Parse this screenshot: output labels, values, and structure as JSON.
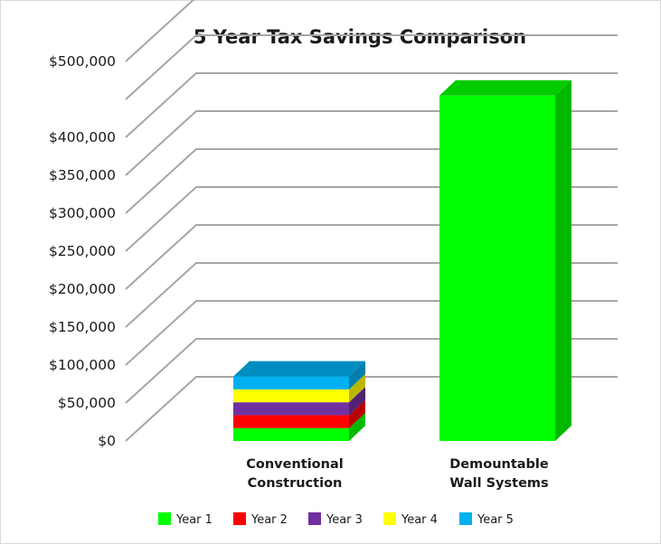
{
  "chart_data": {
    "type": "bar",
    "title": "5 Year Tax Savings Comparison",
    "xlabel": "",
    "ylabel": "",
    "ylim": [
      0,
      500000
    ],
    "y_ticks": [
      0,
      50000,
      100000,
      150000,
      200000,
      250000,
      300000,
      350000,
      400000,
      500000
    ],
    "y_tick_labels": [
      "$0",
      "$50,000",
      "$100,000",
      "$150,000",
      "$200,000",
      "$250,000",
      "$300,000",
      "$350,000",
      "$400,000",
      "$500,000"
    ],
    "categories": [
      {
        "line1": "Conventional",
        "line2": "Construction"
      },
      {
        "line1": "Demountable",
        "line2": "Wall Systems"
      }
    ],
    "stacked": true,
    "grid": true,
    "legend_position": "bottom",
    "series": [
      {
        "name": "Year 1",
        "color": "#00ff00",
        "values": [
          17000,
          455000
        ]
      },
      {
        "name": "Year 2",
        "color": "#ff0000",
        "values": [
          17000,
          0
        ]
      },
      {
        "name": "Year 3",
        "color": "#7030a0",
        "values": [
          17000,
          0
        ]
      },
      {
        "name": "Year 4",
        "color": "#ffff00",
        "values": [
          17000,
          0
        ]
      },
      {
        "name": "Year 5",
        "color": "#00b0f0",
        "values": [
          17000,
          0
        ]
      }
    ]
  }
}
